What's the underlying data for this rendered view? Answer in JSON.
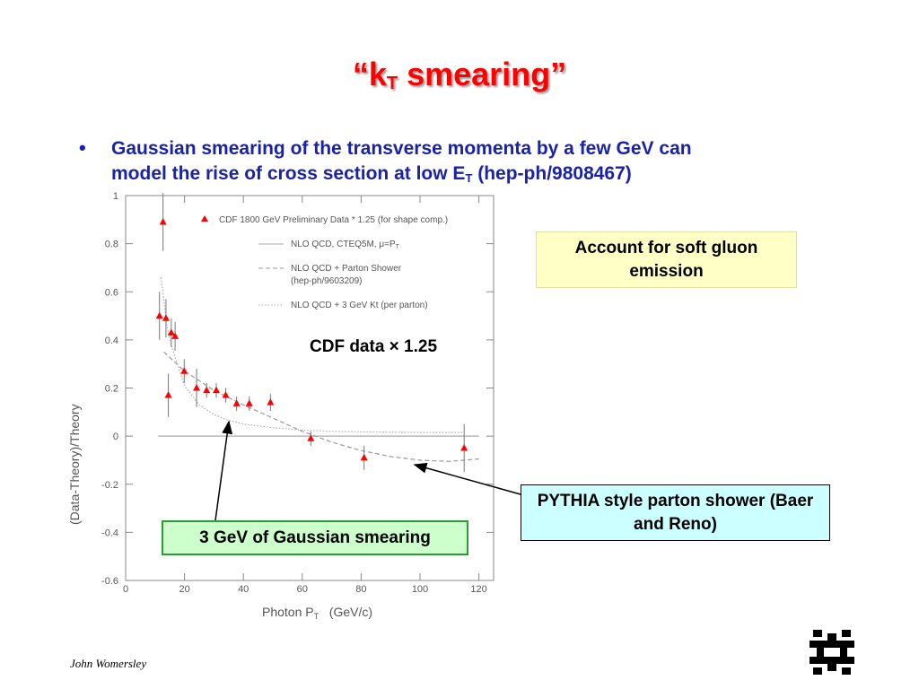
{
  "slide": {
    "title_pre": "“k",
    "title_sub": "T",
    "title_post": " smearing”",
    "bullet": {
      "line1": "Gaussian smearing of the transverse momenta by a few GeV can",
      "line2_pre": "model the rise of cross section at low E",
      "line2_sub": "T",
      "line2_post": " (hep-ph/9808467)"
    },
    "callout_soft_gluon": "Account for soft gluon emission",
    "callout_cdf": "CDF data × 1.25",
    "callout_pythia": "PYTHIA style parton shower (Baer and Reno)",
    "callout_gaussian": "3 GeV of Gaussian smearing",
    "footer_author": "John Womersley"
  },
  "chart_data": {
    "type": "scatter",
    "xlabel": "Photon P",
    "xlabel_sub": "T",
    "xlabel_unit": "   (GeV/c)",
    "ylabel": "(Data-Theory)/Theory",
    "xlim": [
      0,
      125
    ],
    "ylim": [
      -0.6,
      1.0
    ],
    "x_ticks": [
      0,
      20,
      40,
      60,
      80,
      100,
      120
    ],
    "y_ticks": [
      -0.6,
      -0.4,
      -0.2,
      0,
      0.2,
      0.4,
      0.6,
      0.8,
      1
    ],
    "y_tick_labels": [
      "-0.6",
      "-0.4",
      "-0.2",
      "0",
      "0.2",
      "0.4",
      "0.6",
      "0.8",
      "1"
    ],
    "legend": [
      "CDF 1800 GeV Preliminary Data * 1.25 (for shape comp.)",
      "NLO QCD, CTEQ5M, μ=P",
      "NLO QCD + Parton Shower",
      "(hep-ph/9603209)",
      "NLO QCD + 3 GeV Kt (per parton)"
    ],
    "legend_mu_sub": "T",
    "series": [
      {
        "name": "CDF 1800 GeV Preliminary Data * 1.25 (for shape comp.)",
        "marker": "triangle",
        "color": "#ff0000",
        "points": [
          {
            "x": 11.5,
            "y": 0.5,
            "err": 0.1
          },
          {
            "x": 12.7,
            "y": 0.89,
            "err": 0.12
          },
          {
            "x": 13.7,
            "y": 0.49,
            "err": 0.08
          },
          {
            "x": 14.5,
            "y": 0.17,
            "err": 0.09
          },
          {
            "x": 15.5,
            "y": 0.43,
            "err": 0.06
          },
          {
            "x": 16.8,
            "y": 0.415,
            "err": 0.06
          },
          {
            "x": 19.9,
            "y": 0.27,
            "err": 0.05
          },
          {
            "x": 24.1,
            "y": 0.2,
            "err": 0.08
          },
          {
            "x": 27.5,
            "y": 0.19,
            "err": 0.03
          },
          {
            "x": 30.8,
            "y": 0.19,
            "err": 0.03
          },
          {
            "x": 34.0,
            "y": 0.17,
            "err": 0.03
          },
          {
            "x": 37.7,
            "y": 0.135,
            "err": 0.03
          },
          {
            "x": 42.0,
            "y": 0.135,
            "err": 0.03
          },
          {
            "x": 49.2,
            "y": 0.14,
            "err": 0.035
          },
          {
            "x": 62.9,
            "y": -0.01,
            "err": 0.03
          },
          {
            "x": 81.0,
            "y": -0.09,
            "err": 0.05
          },
          {
            "x": 115.0,
            "y": -0.05,
            "err": 0.1
          }
        ]
      },
      {
        "name": "NLO QCD, CTEQ5M, μ=P",
        "style": "solid",
        "color": "#aaaaaa",
        "x": [
          11,
          120
        ],
        "y": [
          0,
          0
        ]
      },
      {
        "name": "NLO QCD + Parton Shower (hep-ph/9603209)",
        "style": "dashed",
        "color": "#999999",
        "x": [
          13,
          20,
          30,
          40,
          50,
          60,
          70,
          80,
          90,
          100,
          110,
          120
        ],
        "y": [
          0.35,
          0.27,
          0.19,
          0.13,
          0.075,
          0.02,
          -0.025,
          -0.06,
          -0.085,
          -0.1,
          -0.105,
          -0.095
        ]
      },
      {
        "name": "NLO QCD + 3 GeV Kt (per parton)",
        "style": "dotted",
        "color": "#aaaaaa",
        "x": [
          12,
          13,
          14,
          15,
          17,
          20,
          25,
          30,
          35,
          40,
          50,
          60,
          70,
          80,
          100,
          115
        ],
        "y": [
          0.66,
          0.56,
          0.46,
          0.4,
          0.32,
          0.21,
          0.13,
          0.09,
          0.065,
          0.05,
          0.035,
          0.025,
          0.02,
          0.018,
          0.015,
          0.015
        ]
      }
    ]
  },
  "colors": {
    "title": "#ff0000",
    "bullet": "#1a23a8",
    "box_yellow": "#ffffc6",
    "box_cyan": "#ccffff",
    "box_green": "#ccffcc",
    "box_green_border": "#2e9a3a"
  },
  "icons": {
    "bullet": "bullet-dot",
    "logo": "fermilab-logo"
  }
}
